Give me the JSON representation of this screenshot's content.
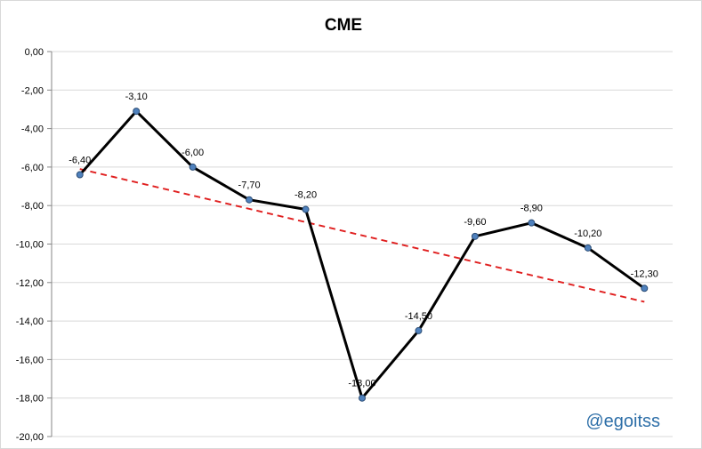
{
  "chart_data": {
    "type": "line",
    "title": "CME",
    "xlabel": "",
    "ylabel": "",
    "ylim": [
      -20,
      0
    ],
    "y_ticks": [
      0,
      -2,
      -4,
      -6,
      -8,
      -10,
      -12,
      -14,
      -16,
      -18,
      -20
    ],
    "y_tick_labels": [
      "0,00",
      "-2,00",
      "-4,00",
      "-6,00",
      "-8,00",
      "-10,00",
      "-12,00",
      "-14,00",
      "-16,00",
      "-18,00",
      "-20,00"
    ],
    "grid": true,
    "legend": "none",
    "series": [
      {
        "values": [
          -6.4,
          -3.1,
          -6.0,
          -7.7,
          -8.2,
          -18.0,
          -14.5,
          -9.6,
          -8.9,
          -10.2,
          -12.3
        ],
        "labels": [
          "-6,40",
          "-3,10",
          "-6,00",
          "-7,70",
          "-8,20",
          "-18,00",
          "-14,50",
          "-9,60",
          "-8,90",
          "-10,20",
          "-12,30"
        ],
        "color": "#000000",
        "marker_color": "#4f81bd"
      }
    ],
    "trendline": {
      "type": "linear",
      "start": -6.1,
      "end": -13.0,
      "color": "#e02020",
      "style": "dashed"
    },
    "watermark": "@egoitss"
  }
}
